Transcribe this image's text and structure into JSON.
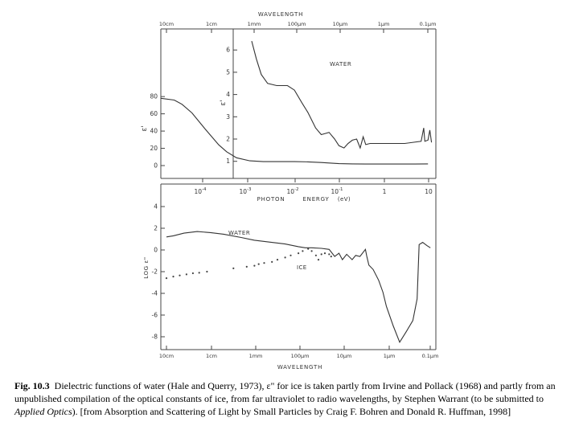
{
  "top_axis": {
    "title": "WAVELENGTH",
    "tick_labels": [
      "10cm",
      "1cm",
      "1mm",
      "100µm",
      "10µm",
      "1µm",
      "0.1µm"
    ]
  },
  "water_label": "WATER",
  "bottom_axis": {
    "tick_labels": [
      "10cm",
      "1cm",
      "1mm",
      "100µm",
      "10µm",
      "1µm",
      "0.1µm"
    ],
    "title": "WAVELENGTH"
  },
  "caption": {
    "fig_label": "Fig. 10.3",
    "text": "Dielectric functions of water (Hale and Querry, 1973), ε\" for ice is taken partly from Irvine and Pollack (1968) and partly from an unpublished compilation of the optical constants of ice, from far ultraviolet to radio wavelengths, by Stephen Warrant (to be submitted to",
    "journal": "Applied Optics",
    "rest": "). [from Absorption and Scattering of Light by Small Particles by Craig F. Bohren and Donald R. Huffman, 1998]"
  },
  "chart_data": [
    {
      "type": "line",
      "ylabel": "ε'",
      "ylim": [
        0,
        85
      ],
      "yticks": [
        0,
        20,
        40,
        60,
        80
      ],
      "xscale": "log",
      "xlim": [
        1e-05,
        15
      ],
      "xaxis": {
        "title": "PHOTON ENERGY (eV)",
        "label_parts": [
          "PHOTON",
          "ENERGY",
          "(eV)"
        ],
        "ticks": [
          {
            "mant": "10",
            "exp": "-4",
            "value": 0.0001
          },
          {
            "mant": "10",
            "exp": "-3",
            "value": 0.001
          },
          {
            "mant": "10",
            "exp": "-2",
            "value": 0.01
          },
          {
            "mant": "10",
            "exp": "-1",
            "value": 0.1
          },
          {
            "mant": "1",
            "exp": "",
            "value": 1
          },
          {
            "mant": "10",
            "exp": "",
            "value": 10
          }
        ]
      },
      "series": [
        {
          "name": "water",
          "points": [
            [
              1e-05,
              78
            ],
            [
              2e-05,
              76
            ],
            [
              3e-05,
              71
            ],
            [
              5e-05,
              61
            ],
            [
              0.0001,
              42
            ],
            [
              0.0002,
              24
            ],
            [
              0.0003,
              16
            ],
            [
              0.0005,
              9
            ],
            [
              0.001,
              5.5
            ],
            [
              0.002,
              4.6
            ],
            [
              0.005,
              4.6
            ],
            [
              0.01,
              4.6
            ],
            [
              0.02,
              4.3
            ],
            [
              0.04,
              3.5
            ],
            [
              0.06,
              3.0
            ],
            [
              0.1,
              2.2
            ],
            [
              0.2,
              2.0
            ],
            [
              0.4,
              1.8
            ],
            [
              1,
              1.8
            ],
            [
              5,
              1.8
            ],
            [
              10,
              2.0
            ]
          ]
        }
      ]
    },
    {
      "type": "line",
      "label": "WATER",
      "ylabel": "ε'",
      "ylim": [
        0.8,
        6.8
      ],
      "yticks": [
        1,
        2,
        3,
        4,
        5,
        6
      ],
      "xscale": "log",
      "xlim": [
        1e-05,
        15
      ],
      "series": [
        {
          "name": "water",
          "points": [
            [
              0.0011,
              6.4
            ],
            [
              0.0014,
              5.6
            ],
            [
              0.0018,
              4.9
            ],
            [
              0.0025,
              4.5
            ],
            [
              0.004,
              4.4
            ],
            [
              0.007,
              4.4
            ],
            [
              0.01,
              4.2
            ],
            [
              0.015,
              3.6
            ],
            [
              0.02,
              3.2
            ],
            [
              0.03,
              2.5
            ],
            [
              0.04,
              2.2
            ],
            [
              0.06,
              2.3
            ],
            [
              0.08,
              2.0
            ],
            [
              0.1,
              1.7
            ],
            [
              0.13,
              1.6
            ],
            [
              0.16,
              1.8
            ],
            [
              0.2,
              1.95
            ],
            [
              0.25,
              2.0
            ],
            [
              0.3,
              1.6
            ],
            [
              0.35,
              2.1
            ],
            [
              0.4,
              1.75
            ],
            [
              0.5,
              1.8
            ],
            [
              1,
              1.8
            ],
            [
              3,
              1.8
            ],
            [
              7,
              1.9
            ],
            [
              8,
              2.5
            ],
            [
              8.5,
              1.9
            ],
            [
              10,
              1.95
            ],
            [
              11,
              2.4
            ],
            [
              12,
              1.85
            ]
          ]
        }
      ]
    },
    {
      "type": "line",
      "ylabel": "LOG ε\"",
      "ylim": [
        -9,
        5
      ],
      "yticks": [
        4,
        2,
        0,
        -2,
        -4,
        -6,
        -8
      ],
      "xlabel": "WAVELENGTH",
      "xscale": "log",
      "xlim": [
        10,
        1e-07
      ],
      "x_unit": "m",
      "series": [
        {
          "name": "water",
          "label": "WATER",
          "points": [
            [
              0.1,
              1.2
            ],
            [
              0.07,
              1.3
            ],
            [
              0.04,
              1.55
            ],
            [
              0.02,
              1.7
            ],
            [
              0.01,
              1.6
            ],
            [
              0.005,
              1.45
            ],
            [
              0.002,
              1.15
            ],
            [
              0.001,
              0.9
            ],
            [
              0.0005,
              0.75
            ],
            [
              0.0002,
              0.55
            ],
            [
              0.0001,
              0.3
            ],
            [
              7e-05,
              0.2
            ],
            [
              5e-05,
              0.2
            ],
            [
              3e-05,
              0.15
            ],
            [
              2e-05,
              0.05
            ],
            [
              1.5e-05,
              -0.6
            ],
            [
              1.2e-05,
              -0.3
            ],
            [
              1e-05,
              -0.9
            ],
            [
              8e-06,
              -0.4
            ],
            [
              6e-06,
              -0.9
            ],
            [
              5e-06,
              -0.5
            ],
            [
              4e-06,
              -0.6
            ],
            [
              3e-06,
              0.05
            ],
            [
              2.8e-06,
              -0.55
            ],
            [
              2.5e-06,
              -1.4
            ],
            [
              2e-06,
              -1.8
            ],
            [
              1.5e-06,
              -2.8
            ],
            [
              1.2e-06,
              -3.9
            ],
            [
              1e-06,
              -5.2
            ],
            [
              7e-07,
              -7.0
            ],
            [
              5e-07,
              -8.5
            ],
            [
              3.5e-07,
              -7.5
            ],
            [
              2.5e-07,
              -6.5
            ],
            [
              2e-07,
              -4.5
            ],
            [
              1.8e-07,
              0.5
            ],
            [
              1.5e-07,
              0.7
            ],
            [
              1.2e-07,
              0.4
            ],
            [
              1e-07,
              0.2
            ]
          ]
        },
        {
          "name": "ice",
          "label": "ICE",
          "points": [
            [
              0.1,
              -2.6
            ],
            [
              0.07,
              -2.45
            ],
            [
              0.05,
              -2.35
            ],
            [
              0.035,
              -2.25
            ],
            [
              0.025,
              -2.15
            ],
            [
              0.018,
              -2.1
            ],
            [
              0.012,
              -2.0
            ],
            [
              0.003,
              -1.7
            ],
            [
              0.0015,
              -1.55
            ],
            [
              0.001,
              -1.45
            ],
            [
              0.0008,
              -1.3
            ],
            [
              0.0006,
              -1.2
            ],
            [
              0.0004,
              -1.1
            ],
            [
              0.0003,
              -0.9
            ],
            [
              0.0002,
              -0.7
            ],
            [
              0.00015,
              -0.5
            ],
            [
              0.0001,
              -0.3
            ],
            [
              8e-05,
              -0.1
            ],
            [
              6e-05,
              0.1
            ],
            [
              5e-05,
              -0.1
            ],
            [
              4e-05,
              -0.5
            ],
            [
              3.5e-05,
              -0.9
            ],
            [
              3e-05,
              -0.4
            ],
            [
              2.5e-05,
              -0.3
            ],
            [
              2e-05,
              -0.4
            ],
            [
              1.8e-05,
              -0.6
            ]
          ]
        }
      ]
    }
  ]
}
